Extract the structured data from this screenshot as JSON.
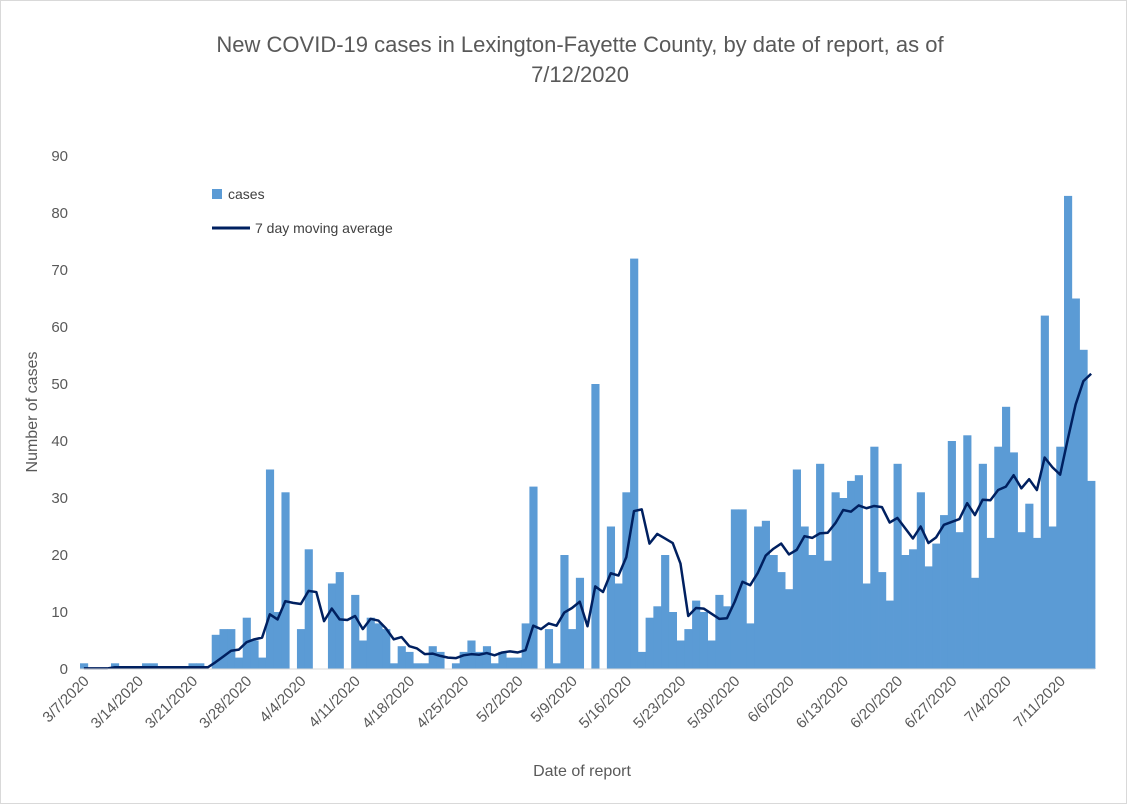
{
  "chart_data": {
    "type": "bar",
    "title_line1": "New COVID-19 cases in Lexington-Fayette County, by date of report, as of",
    "title_line2": "7/12/2020",
    "xlabel": "Date of report",
    "ylabel": "Number of cases",
    "ylim": [
      0,
      90
    ],
    "y_ticks": [
      "0",
      "10",
      "20",
      "30",
      "40",
      "50",
      "60",
      "70",
      "80",
      "90"
    ],
    "x_tick_labels": [
      "3/7/2020",
      "3/14/2020",
      "3/21/2020",
      "3/28/2020",
      "4/4/2020",
      "4/11/2020",
      "4/18/2020",
      "4/25/2020",
      "5/2/2020",
      "5/9/2020",
      "5/16/2020",
      "5/23/2020",
      "5/30/2020",
      "6/6/2020",
      "6/13/2020",
      "6/20/2020",
      "6/27/2020",
      "7/4/2020",
      "7/11/2020"
    ],
    "date_start": "3/7/2020",
    "date_end": "7/12/2020",
    "legend_position": "top-left",
    "grid": false,
    "series": [
      {
        "name": "cases",
        "type": "bar",
        "color": "#5b9bd5",
        "values": [
          1,
          0,
          0,
          0,
          1,
          0,
          0,
          0,
          1,
          1,
          0,
          0,
          0,
          0,
          1,
          1,
          0,
          6,
          7,
          7,
          2,
          9,
          5,
          2,
          35,
          10,
          31,
          0,
          7,
          21,
          0,
          0,
          15,
          17,
          0,
          13,
          5,
          9,
          8,
          7,
          1,
          4,
          3,
          1,
          1,
          4,
          3,
          0,
          1,
          3,
          5,
          3,
          4,
          1,
          3,
          2,
          2,
          8,
          32,
          0,
          7,
          1,
          20,
          7,
          16,
          0,
          50,
          0,
          25,
          15,
          31,
          72,
          3,
          9,
          11,
          20,
          10,
          5,
          7,
          12,
          10,
          5,
          13,
          11,
          28,
          28,
          8,
          25,
          26,
          20,
          17,
          14,
          35,
          25,
          20,
          36,
          19,
          31,
          30,
          33,
          34,
          15,
          39,
          17,
          12,
          36,
          20,
          21,
          31,
          18,
          22,
          27,
          40,
          24,
          41,
          16,
          36,
          23,
          39,
          46,
          38,
          24,
          29,
          23,
          62,
          25,
          39,
          83,
          65,
          56,
          33
        ]
      },
      {
        "name": "7 day moving average",
        "type": "line",
        "color": "#002060",
        "values": [
          0.1,
          0.1,
          0.1,
          0.1,
          0.3,
          0.3,
          0.3,
          0.3,
          0.3,
          0.3,
          0.3,
          0.3,
          0.3,
          0.3,
          0.3,
          0.3,
          0.3,
          1.2,
          2.2,
          3.2,
          3.4,
          4.7,
          5.2,
          5.5,
          9.6,
          8.7,
          11.9,
          11.6,
          11.4,
          13.7,
          13.5,
          8.4,
          10.6,
          8.7,
          8.6,
          9.3,
          7.0,
          8.8,
          8.5,
          7.1,
          5.2,
          5.6,
          4.0,
          3.6,
          2.6,
          2.7,
          2.3,
          2.0,
          1.9,
          2.4,
          2.6,
          2.5,
          2.8,
          2.4,
          2.9,
          3.1,
          2.9,
          3.3,
          7.6,
          7.0,
          8.0,
          7.6,
          9.9,
          10.7,
          11.8,
          7.5,
          14.5,
          13.5,
          16.8,
          16.4,
          19.6,
          27.7,
          28.0,
          22.0,
          23.7,
          22.9,
          22.1,
          18.5,
          9.3,
          10.7,
          10.6,
          9.7,
          8.8,
          8.9,
          11.8,
          15.3,
          14.7,
          16.9,
          19.9,
          21.1,
          22.0,
          20.1,
          20.9,
          23.3,
          23.0,
          23.8,
          23.9,
          25.6,
          27.9,
          27.6,
          28.7,
          28.2,
          28.6,
          28.4,
          25.7,
          26.5,
          24.7,
          22.9,
          25.0,
          22.1,
          23.1,
          25.3,
          25.8,
          26.3,
          29.1,
          27.0,
          29.7,
          29.6,
          31.4,
          32.0,
          34.0,
          31.7,
          33.3,
          31.4,
          37.1,
          35.4,
          34.1,
          40.4,
          46.4,
          50.5,
          51.8
        ]
      }
    ]
  }
}
